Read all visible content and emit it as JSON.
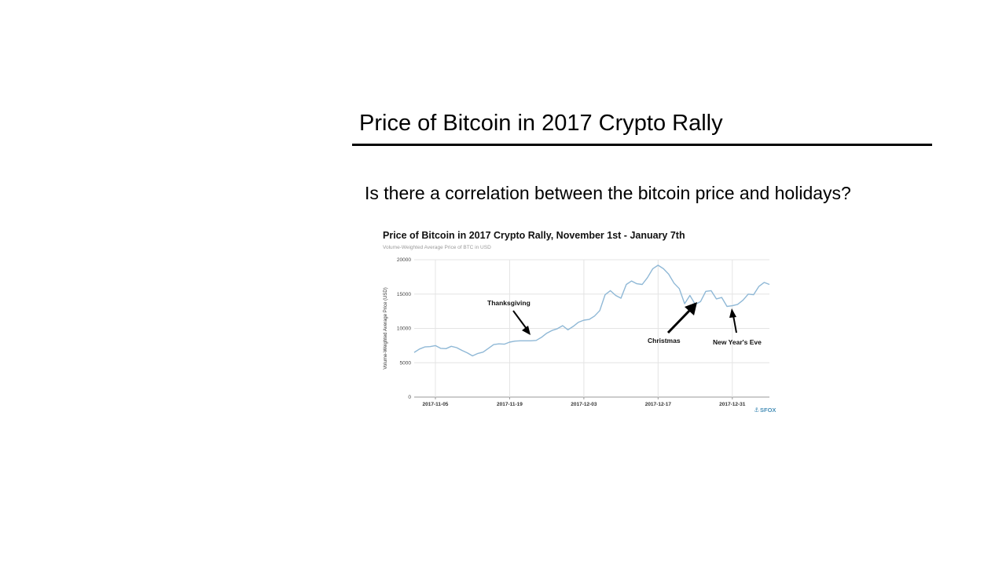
{
  "slide": {
    "title": "Price of Bitcoin in 2017 Crypto Rally",
    "question": "Is there a correlation between the bitcoin price and holidays?"
  },
  "chart_data": {
    "type": "line",
    "title": "Price of Bitcoin in 2017 Crypto Rally, November 1st - January 7th",
    "subtitle": "Volume-Weighted Average Price of BTC in USD",
    "ylabel": "Volume-Weighted Average Price (USD)",
    "xlabel": "",
    "ylim": [
      0,
      20000
    ],
    "yticks": [
      0,
      5000,
      10000,
      15000,
      20000
    ],
    "xticks": [
      "2017-11-05",
      "2017-11-19",
      "2017-12-03",
      "2017-12-17",
      "2017-12-31"
    ],
    "grid": true,
    "line_color": "#8fb8d6",
    "series": [
      {
        "x": [
          "2017-11-01",
          "2017-11-02",
          "2017-11-03",
          "2017-11-04",
          "2017-11-05",
          "2017-11-06",
          "2017-11-07",
          "2017-11-08",
          "2017-11-09",
          "2017-11-10",
          "2017-11-11",
          "2017-11-12",
          "2017-11-13",
          "2017-11-14",
          "2017-11-15",
          "2017-11-16",
          "2017-11-17",
          "2017-11-18",
          "2017-11-19",
          "2017-11-20",
          "2017-11-21",
          "2017-11-22",
          "2017-11-23",
          "2017-11-24",
          "2017-11-25",
          "2017-11-26",
          "2017-11-27",
          "2017-11-28",
          "2017-11-29",
          "2017-11-30",
          "2017-12-01",
          "2017-12-02",
          "2017-12-03",
          "2017-12-04",
          "2017-12-05",
          "2017-12-06",
          "2017-12-07",
          "2017-12-08",
          "2017-12-09",
          "2017-12-10",
          "2017-12-11",
          "2017-12-12",
          "2017-12-13",
          "2017-12-14",
          "2017-12-15",
          "2017-12-16",
          "2017-12-17",
          "2017-12-18",
          "2017-12-19",
          "2017-12-20",
          "2017-12-21",
          "2017-12-22",
          "2017-12-23",
          "2017-12-24",
          "2017-12-25",
          "2017-12-26",
          "2017-12-27",
          "2017-12-28",
          "2017-12-29",
          "2017-12-30",
          "2017-12-31",
          "2018-01-01",
          "2018-01-02",
          "2018-01-03",
          "2018-01-04",
          "2018-01-05",
          "2018-01-06",
          "2018-01-07"
        ],
        "values": [
          6500,
          7000,
          7300,
          7350,
          7500,
          7100,
          7050,
          7400,
          7200,
          6800,
          6450,
          6000,
          6350,
          6550,
          7100,
          7650,
          7750,
          7700,
          8000,
          8150,
          8200,
          8200,
          8200,
          8250,
          8700,
          9300,
          9700,
          9950,
          10400,
          9800,
          10300,
          10900,
          11200,
          11300,
          11800,
          12600,
          14900,
          15500,
          14800,
          14400,
          16400,
          16900,
          16500,
          16400,
          17400,
          18700,
          19200,
          18700,
          17900,
          16600,
          15800,
          13600,
          14800,
          13500,
          13900,
          15400,
          15500,
          14300,
          14500,
          13200,
          13300,
          13500,
          14100,
          15000,
          14900,
          16100,
          16700,
          16400
        ]
      }
    ],
    "annotations": [
      {
        "label": "Thanksgiving"
      },
      {
        "label": "Christmas"
      },
      {
        "label": "New Year's Eve"
      }
    ],
    "source": "SFOX"
  }
}
